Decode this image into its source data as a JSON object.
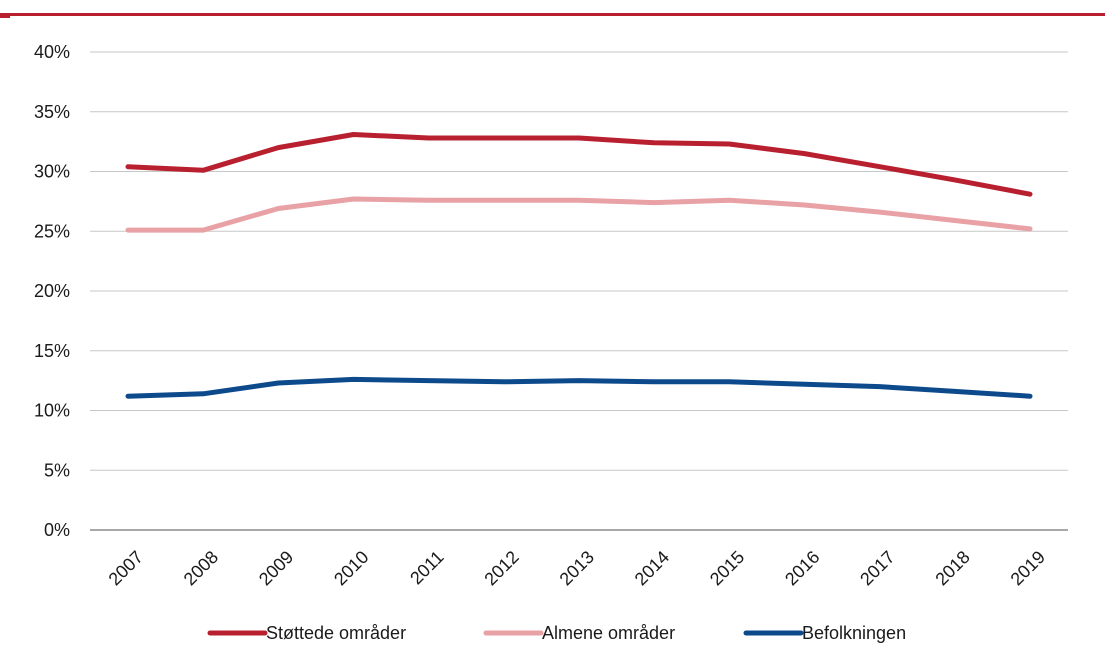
{
  "chart_data": {
    "type": "line",
    "title": "",
    "xlabel": "",
    "ylabel": "",
    "categories": [
      "2007",
      "2008",
      "2009",
      "2010",
      "2011",
      "2012",
      "2013",
      "2014",
      "2015",
      "2016",
      "2017",
      "2018",
      "2019"
    ],
    "ylim": [
      0,
      40
    ],
    "yticks": [
      "0%",
      "5%",
      "10%",
      "15%",
      "20%",
      "25%",
      "30%",
      "35%",
      "40%"
    ],
    "ytick_values": [
      0,
      5,
      10,
      15,
      20,
      25,
      30,
      35,
      40
    ],
    "grid": "horizontal",
    "legend_position": "bottom",
    "series": [
      {
        "name": "Støttede områder",
        "color": "#b8202f",
        "values": [
          30.4,
          30.1,
          32.0,
          33.1,
          32.8,
          32.8,
          32.8,
          32.4,
          32.3,
          31.5,
          30.4,
          29.3,
          28.1
        ]
      },
      {
        "name": "Almene områder",
        "color": "#e8a1a5",
        "values": [
          25.1,
          25.1,
          26.9,
          27.7,
          27.6,
          27.6,
          27.6,
          27.4,
          27.6,
          27.2,
          26.6,
          25.9,
          25.2
        ]
      },
      {
        "name": "Befolkningen",
        "color": "#0d4a8c",
        "values": [
          11.2,
          11.4,
          12.3,
          12.6,
          12.5,
          12.4,
          12.5,
          12.4,
          12.4,
          12.2,
          12.0,
          11.6,
          11.2
        ]
      }
    ],
    "top_rule_color": "#b8202f",
    "grid_color": "#c7c7c7",
    "axis_color": "#8c8c8c"
  }
}
